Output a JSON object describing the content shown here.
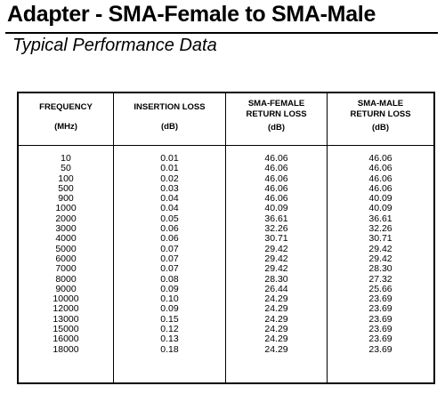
{
  "title": "Adapter - SMA-Female to SMA-Male",
  "subtitle": "Typical Performance Data",
  "table": {
    "headers": {
      "frequency": {
        "line1": "FREQUENCY",
        "unit": "(MHz)"
      },
      "insertion_loss": {
        "line1": "INSERTION LOSS",
        "unit": "(dB)"
      },
      "female_rl": {
        "line1": "SMA-FEMALE",
        "line2": "RETURN LOSS",
        "unit": "(dB)"
      },
      "male_rl": {
        "line1": "SMA-MALE",
        "line2": "RETURN LOSS",
        "unit": "(dB)"
      }
    },
    "rows": [
      [
        "10",
        "0.01",
        "46.06",
        "46.06"
      ],
      [
        "50",
        "0.01",
        "46.06",
        "46.06"
      ],
      [
        "100",
        "0.02",
        "46.06",
        "46.06"
      ],
      [
        "500",
        "0.03",
        "46.06",
        "46.06"
      ],
      [
        "900",
        "0.04",
        "46.06",
        "40.09"
      ],
      [
        "1000",
        "0.04",
        "40.09",
        "40.09"
      ],
      [
        "2000",
        "0.05",
        "36.61",
        "36.61"
      ],
      [
        "3000",
        "0.06",
        "32.26",
        "32.26"
      ],
      [
        "4000",
        "0.06",
        "30.71",
        "30.71"
      ],
      [
        "5000",
        "0.07",
        "29.42",
        "29.42"
      ],
      [
        "6000",
        "0.07",
        "29.42",
        "29.42"
      ],
      [
        "7000",
        "0.07",
        "29.42",
        "28.30"
      ],
      [
        "8000",
        "0.08",
        "28.30",
        "27.32"
      ],
      [
        "9000",
        "0.09",
        "26.44",
        "25.66"
      ],
      [
        "10000",
        "0.10",
        "24.29",
        "23.69"
      ],
      [
        "12000",
        "0.09",
        "24.29",
        "23.69"
      ],
      [
        "13000",
        "0.15",
        "24.29",
        "23.69"
      ],
      [
        "15000",
        "0.12",
        "24.29",
        "23.69"
      ],
      [
        "16000",
        "0.13",
        "24.29",
        "23.69"
      ],
      [
        "18000",
        "0.18",
        "24.29",
        "23.69"
      ]
    ]
  }
}
